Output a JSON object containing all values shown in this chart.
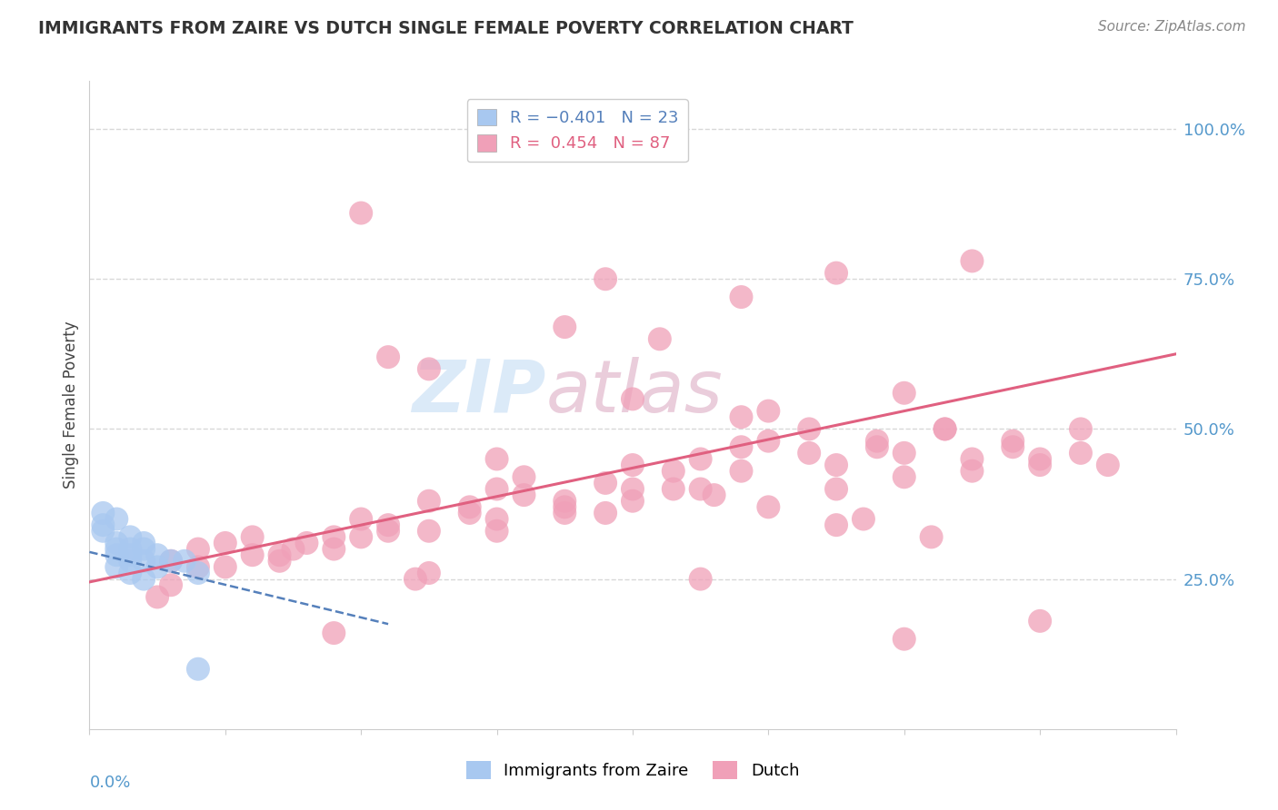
{
  "title": "IMMIGRANTS FROM ZAIRE VS DUTCH SINGLE FEMALE POVERTY CORRELATION CHART",
  "source_text": "Source: ZipAtlas.com",
  "ylabel": "Single Female Poverty",
  "right_yticks": [
    "25.0%",
    "50.0%",
    "75.0%",
    "100.0%"
  ],
  "right_ytick_vals": [
    0.25,
    0.5,
    0.75,
    1.0
  ],
  "legend_label_blue": "Immigrants from Zaire",
  "legend_label_pink": "Dutch",
  "legend_r_blue": "R = -0.401",
  "legend_n_blue": "N = 23",
  "legend_r_pink": "R =  0.454",
  "legend_n_pink": "N = 87",
  "blue_scatter_x": [
    0.001,
    0.002,
    0.003,
    0.004,
    0.005,
    0.006,
    0.007,
    0.008,
    0.002,
    0.003,
    0.004,
    0.005,
    0.001,
    0.002,
    0.003,
    0.004,
    0.002,
    0.003,
    0.001,
    0.004,
    0.003,
    0.002,
    0.008
  ],
  "blue_scatter_y": [
    0.33,
    0.3,
    0.29,
    0.31,
    0.27,
    0.28,
    0.28,
    0.26,
    0.35,
    0.32,
    0.3,
    0.29,
    0.34,
    0.31,
    0.3,
    0.28,
    0.27,
    0.26,
    0.36,
    0.25,
    0.28,
    0.29,
    0.1
  ],
  "pink_scatter_x": [
    0.006,
    0.008,
    0.01,
    0.012,
    0.014,
    0.016,
    0.018,
    0.02,
    0.022,
    0.025,
    0.028,
    0.03,
    0.032,
    0.035,
    0.038,
    0.04,
    0.043,
    0.045,
    0.048,
    0.05,
    0.053,
    0.055,
    0.058,
    0.06,
    0.063,
    0.065,
    0.068,
    0.07,
    0.073,
    0.075,
    0.006,
    0.01,
    0.015,
    0.02,
    0.025,
    0.03,
    0.035,
    0.04,
    0.045,
    0.05,
    0.055,
    0.06,
    0.065,
    0.07,
    0.008,
    0.012,
    0.018,
    0.022,
    0.028,
    0.032,
    0.038,
    0.043,
    0.048,
    0.053,
    0.058,
    0.063,
    0.068,
    0.073,
    0.005,
    0.014,
    0.024,
    0.035,
    0.046,
    0.057,
    0.048,
    0.04,
    0.03,
    0.05,
    0.06,
    0.02,
    0.018,
    0.025,
    0.038,
    0.055,
    0.065,
    0.048,
    0.035,
    0.042,
    0.022,
    0.06,
    0.07,
    0.025,
    0.045,
    0.03,
    0.055,
    0.062,
    0.04
  ],
  "pink_scatter_y": [
    0.28,
    0.3,
    0.31,
    0.32,
    0.29,
    0.31,
    0.3,
    0.35,
    0.33,
    0.38,
    0.36,
    0.4,
    0.42,
    0.38,
    0.36,
    0.4,
    0.43,
    0.45,
    0.47,
    0.48,
    0.5,
    0.44,
    0.47,
    0.46,
    0.5,
    0.45,
    0.48,
    0.44,
    0.46,
    0.44,
    0.24,
    0.27,
    0.3,
    0.32,
    0.33,
    0.35,
    0.37,
    0.38,
    0.4,
    0.37,
    0.4,
    0.42,
    0.43,
    0.45,
    0.27,
    0.29,
    0.32,
    0.34,
    0.37,
    0.39,
    0.41,
    0.4,
    0.43,
    0.46,
    0.48,
    0.5,
    0.47,
    0.5,
    0.22,
    0.28,
    0.25,
    0.36,
    0.39,
    0.35,
    0.52,
    0.55,
    0.45,
    0.53,
    0.56,
    0.86,
    0.16,
    0.6,
    0.75,
    0.76,
    0.78,
    0.72,
    0.67,
    0.65,
    0.62,
    0.15,
    0.18,
    0.26,
    0.25,
    0.33,
    0.34,
    0.32,
    0.44
  ],
  "blue_line_x": [
    0.0,
    0.022
  ],
  "blue_line_y": [
    0.295,
    0.175
  ],
  "pink_line_x": [
    0.0,
    0.08
  ],
  "pink_line_y": [
    0.245,
    0.625
  ],
  "xlim": [
    0.0,
    0.08
  ],
  "ylim": [
    0.0,
    1.08
  ],
  "background_color": "#ffffff",
  "grid_color": "#d8d8d8",
  "blue_color": "#a8c8f0",
  "pink_color": "#f0a0b8",
  "blue_line_color": "#5580bb",
  "pink_line_color": "#e06080",
  "title_color": "#333333",
  "source_color": "#888888",
  "axis_label_color": "#5599cc",
  "watermark_color": "#d8e8f8",
  "watermark_color2": "#e8c8d8"
}
